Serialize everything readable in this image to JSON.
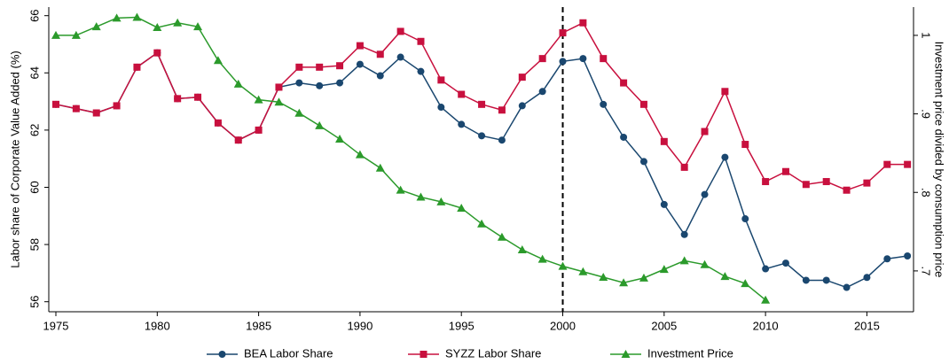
{
  "chart_data": {
    "type": "line",
    "y_label": "Labor share of Corporate Value Added (%)",
    "y2_label": "Investment price divided by consumption price",
    "x": [
      1975,
      1976,
      1977,
      1978,
      1979,
      1980,
      1981,
      1982,
      1983,
      1984,
      1985,
      1986,
      1987,
      1988,
      1989,
      1990,
      1991,
      1992,
      1993,
      1994,
      1995,
      1996,
      1997,
      1998,
      1999,
      2000,
      2001,
      2002,
      2003,
      2004,
      2005,
      2006,
      2007,
      2008,
      2009,
      2010,
      2011,
      2012,
      2013,
      2014,
      2015,
      2016,
      2017
    ],
    "series": [
      {
        "name": "BEA Labor Share",
        "color": "#1a476f",
        "marker": "circle",
        "values": [
          62.9,
          62.75,
          62.6,
          62.85,
          64.2,
          64.7,
          63.1,
          63.15,
          62.25,
          61.65,
          62.0,
          63.5,
          63.65,
          63.55,
          63.65,
          64.3,
          63.9,
          64.55,
          64.05,
          62.8,
          62.2,
          61.8,
          61.65,
          62.85,
          63.35,
          64.4,
          64.5,
          62.9,
          61.75,
          60.9,
          59.4,
          58.35,
          59.75,
          61.05,
          58.9,
          57.15,
          57.35,
          56.75,
          56.75,
          56.5,
          56.85,
          57.5,
          57.6
        ]
      },
      {
        "name": "SYZZ Labor Share",
        "color": "#c8103e",
        "marker": "square",
        "values": [
          62.9,
          62.75,
          62.6,
          62.85,
          64.2,
          64.7,
          63.1,
          63.15,
          62.25,
          61.65,
          62.0,
          63.5,
          64.2,
          64.2,
          64.25,
          64.95,
          64.65,
          65.45,
          65.1,
          63.75,
          63.25,
          62.9,
          62.7,
          63.85,
          64.5,
          65.4,
          65.75,
          64.5,
          63.65,
          62.9,
          61.6,
          60.7,
          61.95,
          63.35,
          61.5,
          60.2,
          60.55,
          60.1,
          60.2,
          59.9,
          60.15,
          60.8,
          60.8
        ]
      },
      {
        "name": "Investment Price",
        "color": "#2b9a2b",
        "marker": "triangle",
        "axis": "y2",
        "values": [
          1.0,
          1.0,
          1.011,
          1.022,
          1.023,
          1.01,
          1.016,
          1.011,
          0.968,
          0.938,
          0.918,
          0.915,
          0.901,
          0.885,
          0.868,
          0.848,
          0.831,
          0.803,
          0.794,
          0.788,
          0.78,
          0.76,
          0.743,
          0.727,
          0.715,
          0.706,
          0.699,
          0.692,
          0.685,
          0.691,
          0.702,
          0.713,
          0.708,
          0.693,
          0.684,
          0.663,
          null,
          null,
          null,
          null,
          null,
          null,
          null
        ]
      }
    ],
    "xlim": [
      1974.65,
      2017.3
    ],
    "xticks": [
      1975,
      1980,
      1985,
      1990,
      1995,
      2000,
      2005,
      2010,
      2015
    ],
    "ylim": [
      55.65,
      66.3
    ],
    "yticks": [
      56,
      58,
      60,
      62,
      64,
      66
    ],
    "y2lim": [
      0.648,
      1.036
    ],
    "y2ticks": [
      {
        "value": 0.7,
        "label": ".7"
      },
      {
        "value": 0.8,
        "label": ".8"
      },
      {
        "value": 0.9,
        "label": ".9"
      },
      1
    ],
    "vline": 2000,
    "legend": "bottom",
    "grid": false
  }
}
